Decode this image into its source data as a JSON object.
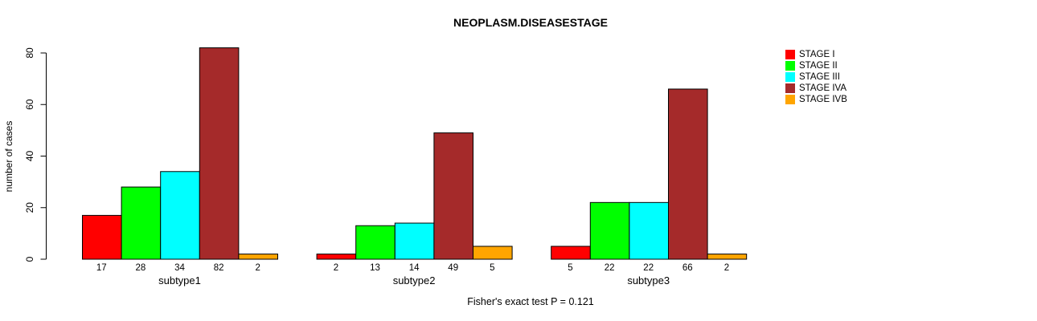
{
  "chart_data": {
    "type": "bar",
    "title": "NEOPLASM.DISEASESTAGE",
    "ylabel": "number of cases",
    "xlabel": "",
    "ylim": [
      0,
      80
    ],
    "yticks": [
      0,
      20,
      40,
      60,
      80
    ],
    "categories": [
      "subtype1",
      "subtype2",
      "subtype3"
    ],
    "series": [
      {
        "name": "STAGE I",
        "color": "#ff0000",
        "values": [
          17,
          2,
          5
        ]
      },
      {
        "name": "STAGE II",
        "color": "#00ff00",
        "values": [
          28,
          13,
          22
        ]
      },
      {
        "name": "STAGE III",
        "color": "#00ffff",
        "values": [
          34,
          14,
          22
        ]
      },
      {
        "name": "STAGE IVA",
        "color": "#a52a2a",
        "values": [
          82,
          49,
          66
        ]
      },
      {
        "name": "STAGE IVB",
        "color": "#ffa500",
        "values": [
          2,
          5,
          2
        ]
      }
    ],
    "bar_value_labels": [
      [
        17,
        28,
        34,
        82,
        2
      ],
      [
        2,
        13,
        14,
        49,
        5
      ],
      [
        5,
        22,
        22,
        66,
        2
      ]
    ],
    "legend_position": "top-right",
    "grid": false,
    "annotation": "Fisher's exact test P = 0.121",
    "bar_border_color": "#000000",
    "axis_color": "#000000",
    "text_color": "#000000"
  }
}
